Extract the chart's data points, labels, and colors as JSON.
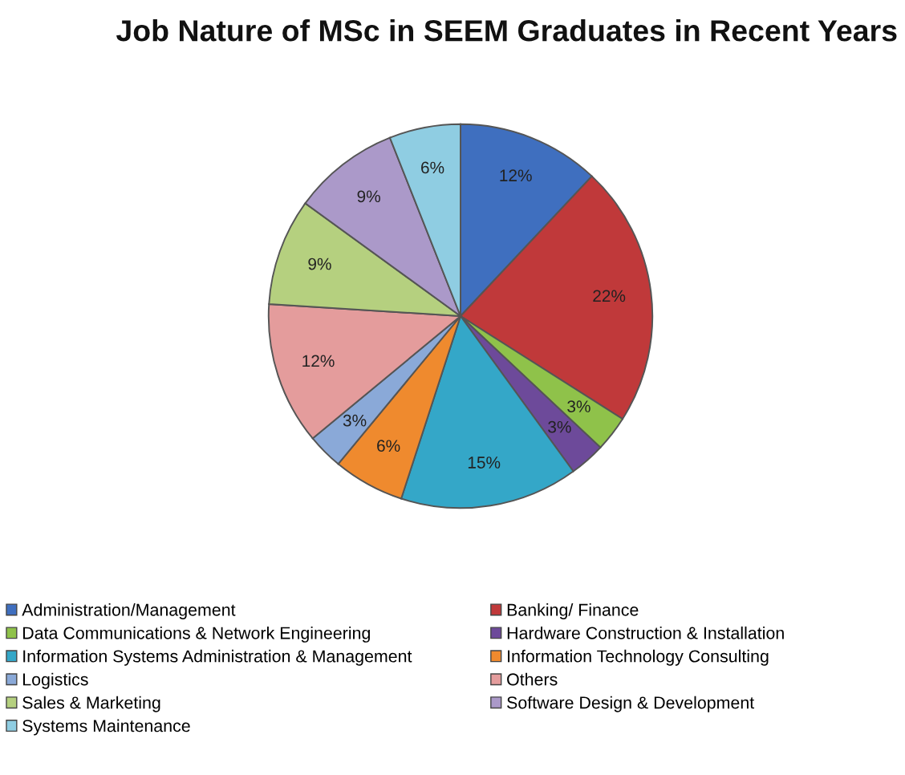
{
  "chart_data": {
    "type": "pie",
    "title": "Job Nature of MSc in SEEM Graduates in Recent Years",
    "categories": [
      "Administration/Management",
      "Banking/ Finance",
      "Data Communications & Network Engineering",
      "Hardware Construction & Installation",
      "Information Systems Administration & Management",
      "Information Technology Consulting",
      "Logistics",
      "Others",
      "Sales & Marketing",
      "Software Design & Development",
      "Systems Maintenance"
    ],
    "values": [
      12,
      22,
      3,
      3,
      15,
      6,
      3,
      12,
      9,
      9,
      6
    ],
    "colors": [
      "#3f6fbf",
      "#c0393a",
      "#8fc24a",
      "#6d4a9a",
      "#34a7c8",
      "#ef8a2e",
      "#8aa9d8",
      "#e49c9c",
      "#b5d07f",
      "#ab99c9",
      "#8fcde2"
    ],
    "value_labels": [
      "12%",
      "22%",
      "3%",
      "3%",
      "15%",
      "6%",
      "3%",
      "12%",
      "9%",
      "9%",
      "6%"
    ],
    "legend": "bottom"
  }
}
